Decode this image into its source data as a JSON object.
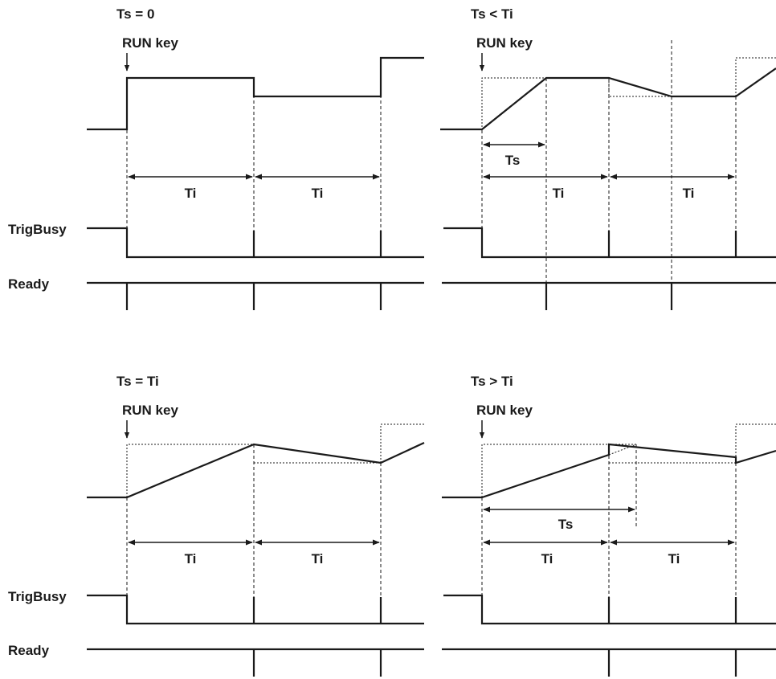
{
  "panels": [
    {
      "title": "Ts = 0",
      "run_key": "RUN key",
      "ts_label": "",
      "ti_label_1": "Ti",
      "ti_label_2": "Ti"
    },
    {
      "title": "Ts < Ti",
      "run_key": "RUN key",
      "ts_label": "Ts",
      "ti_label_1": "Ti",
      "ti_label_2": "Ti"
    },
    {
      "title": "Ts = Ti",
      "run_key": "RUN key",
      "ts_label": "",
      "ti_label_1": "Ti",
      "ti_label_2": "Ti"
    },
    {
      "title": "Ts > Ti",
      "run_key": "RUN key",
      "ts_label": "Ts",
      "ti_label_1": "Ti",
      "ti_label_2": "Ti"
    }
  ],
  "signal_labels": {
    "trigbusy_top": "TrigBusy",
    "ready_top": "Ready",
    "trigbusy_bottom": "TrigBusy",
    "ready_bottom": "Ready"
  }
}
